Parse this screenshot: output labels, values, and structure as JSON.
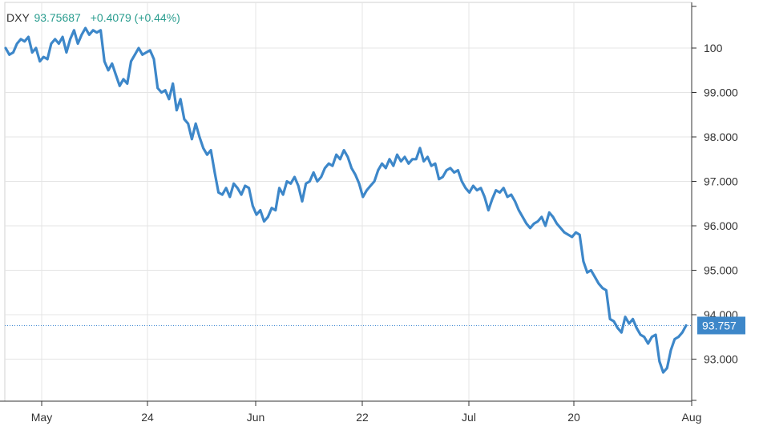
{
  "chart_data": {
    "type": "line",
    "symbol": "DXY",
    "last_value_text": "93.75687",
    "change_text": "+0.4079 (+0.44%)",
    "current_label": "93.757",
    "x_tick_labels": [
      "May",
      "24",
      "Jun",
      "22",
      "Jul",
      "20",
      "Aug"
    ],
    "y_tick_labels": [
      "100",
      "99.000",
      "98.000",
      "97.000",
      "96.000",
      "95.000",
      "94.000",
      "93.000"
    ],
    "y_tick_values": [
      100,
      99,
      98,
      97,
      96,
      95,
      94,
      93
    ],
    "ylim": [
      92.15,
      101.05
    ],
    "grid": true,
    "series": [
      {
        "name": "DXY",
        "values": [
          100.0,
          99.85,
          99.9,
          100.1,
          100.2,
          100.15,
          100.25,
          99.9,
          100.0,
          99.7,
          99.8,
          99.75,
          100.1,
          100.2,
          100.1,
          100.25,
          99.9,
          100.2,
          100.4,
          100.1,
          100.3,
          100.45,
          100.3,
          100.4,
          100.35,
          100.4,
          99.7,
          99.5,
          99.65,
          99.4,
          99.15,
          99.3,
          99.2,
          99.7,
          99.85,
          100.0,
          99.85,
          99.9,
          99.95,
          99.75,
          99.1,
          99.0,
          99.05,
          98.85,
          99.2,
          98.6,
          98.85,
          98.4,
          98.3,
          97.95,
          98.3,
          98.0,
          97.75,
          97.6,
          97.7,
          97.2,
          96.75,
          96.7,
          96.85,
          96.65,
          96.95,
          96.85,
          96.7,
          96.9,
          96.85,
          96.45,
          96.25,
          96.35,
          96.1,
          96.2,
          96.4,
          96.35,
          96.85,
          96.7,
          97.0,
          96.95,
          97.1,
          96.9,
          96.55,
          96.95,
          97.0,
          97.2,
          97.0,
          97.1,
          97.3,
          97.4,
          97.35,
          97.6,
          97.5,
          97.7,
          97.55,
          97.3,
          97.15,
          96.95,
          96.65,
          96.8,
          96.9,
          97.0,
          97.25,
          97.4,
          97.3,
          97.5,
          97.35,
          97.6,
          97.45,
          97.55,
          97.4,
          97.5,
          97.5,
          97.75,
          97.45,
          97.55,
          97.35,
          97.4,
          97.05,
          97.1,
          97.25,
          97.3,
          97.2,
          97.25,
          97.0,
          96.85,
          96.75,
          96.9,
          96.8,
          96.85,
          96.65,
          96.35,
          96.6,
          96.8,
          96.75,
          96.85,
          96.65,
          96.7,
          96.55,
          96.35,
          96.2,
          96.05,
          95.95,
          96.05,
          96.1,
          96.2,
          96.0,
          96.3,
          96.2,
          96.05,
          95.95,
          95.85,
          95.8,
          95.75,
          95.85,
          95.8,
          95.2,
          94.95,
          95.0,
          94.85,
          94.7,
          94.6,
          94.55,
          93.9,
          93.85,
          93.7,
          93.6,
          93.95,
          93.8,
          93.9,
          93.7,
          93.55,
          93.5,
          93.35,
          93.5,
          93.55,
          92.95,
          92.7,
          92.8,
          93.2,
          93.45,
          93.5,
          93.6,
          93.757
        ]
      }
    ]
  }
}
